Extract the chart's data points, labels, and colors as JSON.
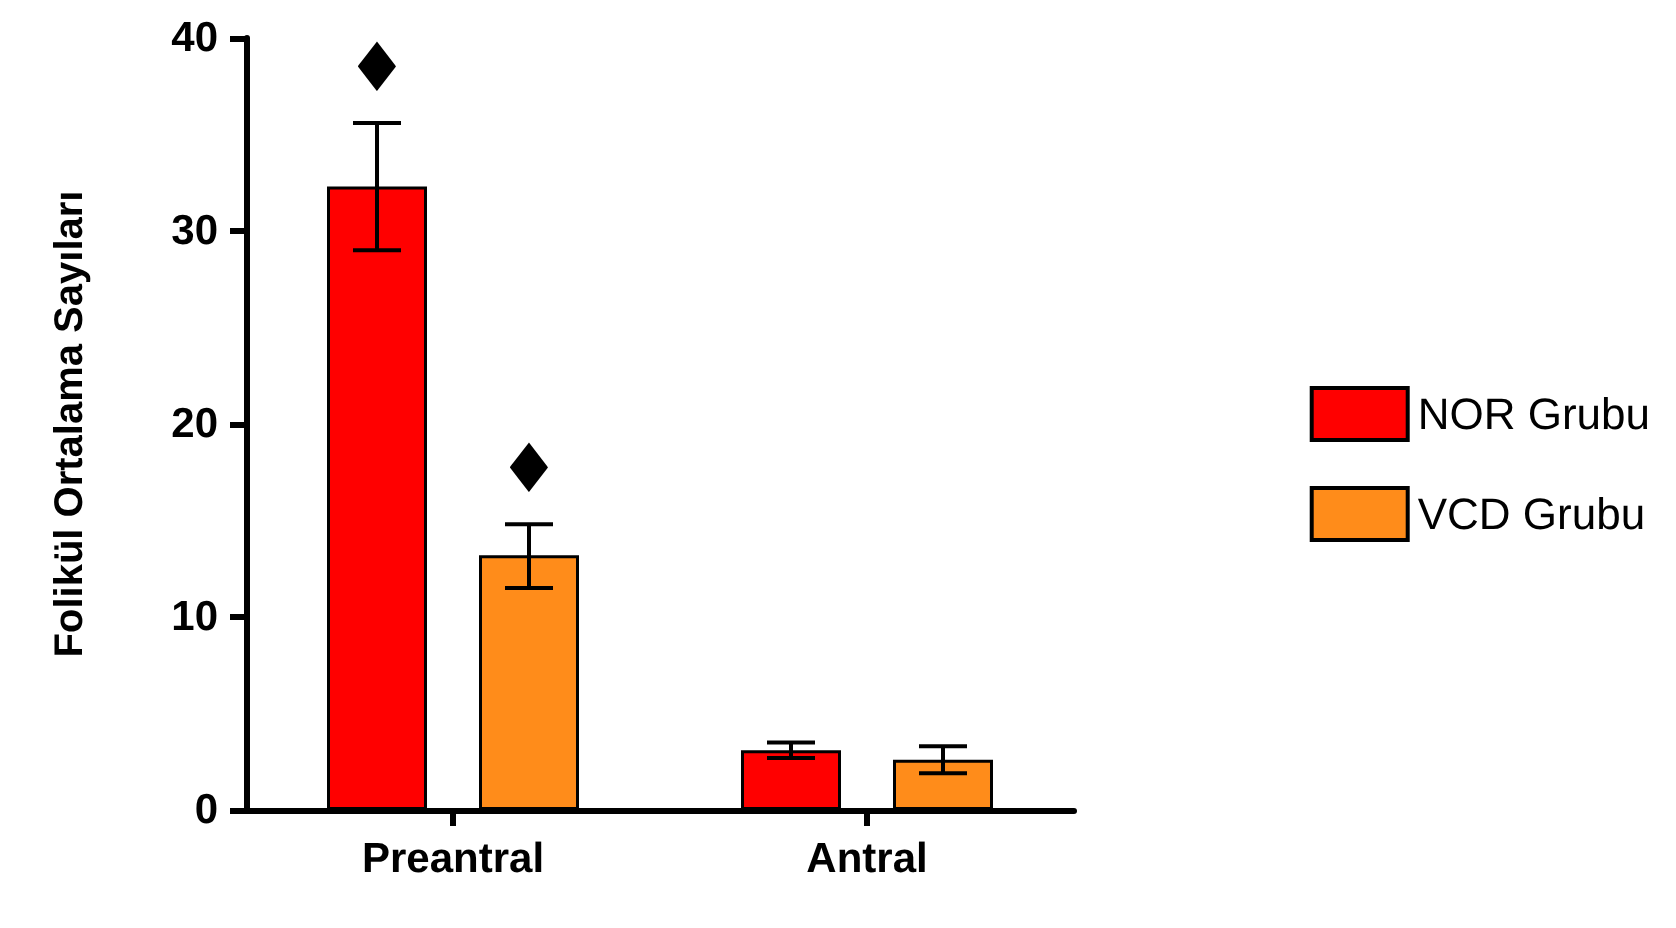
{
  "chart_data": {
    "type": "bar",
    "ylabel": "Folikül Ortalama Sayıları",
    "categories": [
      "Preantral",
      "Antral"
    ],
    "series": [
      {
        "name": "NOR Grubu",
        "color": "#ff0000",
        "values": [
          32.3,
          3.1
        ],
        "errors": [
          [
            29.0,
            35.6
          ],
          [
            2.7,
            3.5
          ]
        ]
      },
      {
        "name": "VCD Grubu",
        "color": "#ff8c1a",
        "values": [
          13.2,
          2.6
        ],
        "errors": [
          [
            11.5,
            14.8
          ],
          [
            1.9,
            3.3
          ]
        ]
      }
    ],
    "ylim": [
      0,
      40
    ],
    "yticks": [
      0,
      10,
      20,
      30,
      40
    ],
    "grid": false,
    "legend": "right",
    "annotations": [
      "♦",
      "♦"
    ]
  }
}
